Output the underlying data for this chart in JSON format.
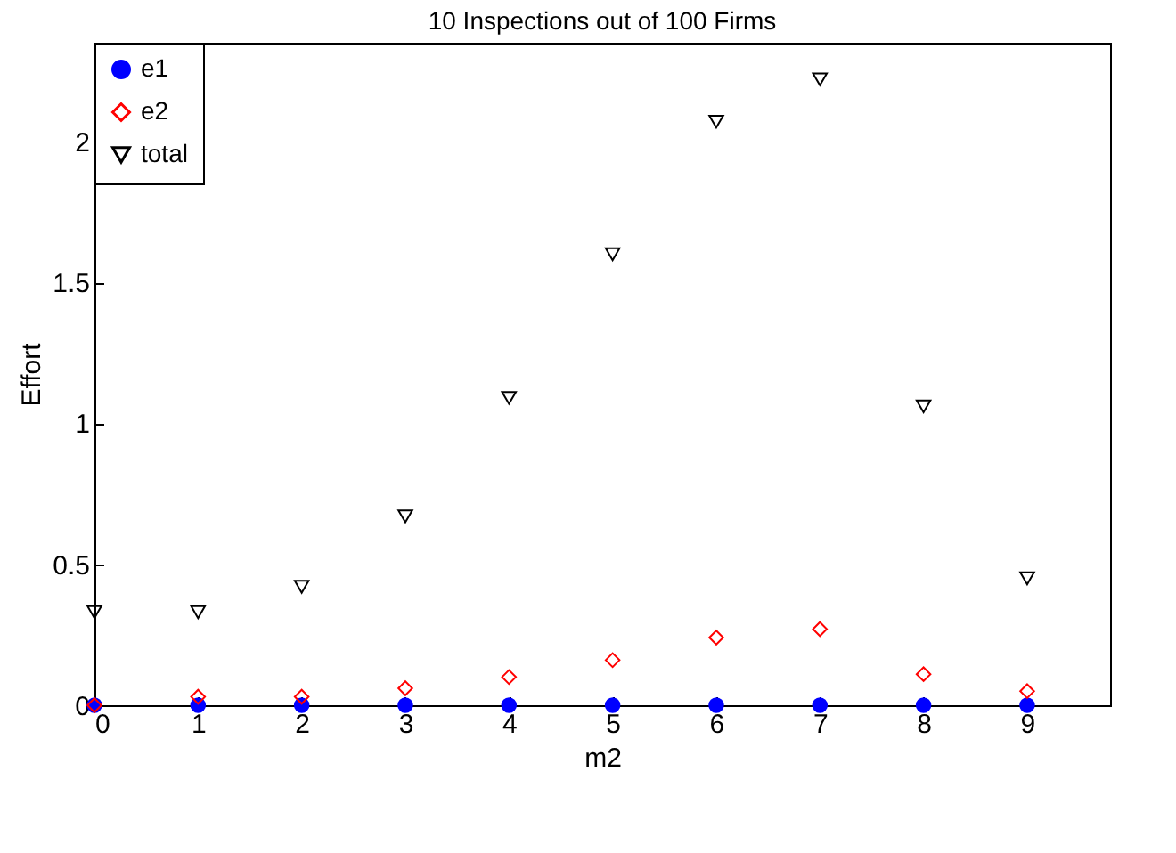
{
  "chart_data": {
    "type": "scatter",
    "title": "10 Inspections out of 100 Firms",
    "xlabel": "m2",
    "ylabel": "Effort",
    "x": [
      0,
      1,
      2,
      3,
      4,
      5,
      6,
      7,
      8,
      9
    ],
    "series": [
      {
        "name": "e1",
        "color": "#0000ff",
        "marker": "circle",
        "values": [
          0,
          0,
          0,
          0,
          0,
          0,
          0,
          0,
          0,
          0
        ]
      },
      {
        "name": "e2",
        "color": "#ff0000",
        "marker": "diamond",
        "values": [
          0,
          0.03,
          0.03,
          0.06,
          0.1,
          0.16,
          0.24,
          0.27,
          0.11,
          0.05
        ]
      },
      {
        "name": "total",
        "color": "#000000",
        "marker": "triangle",
        "values": [
          0.33,
          0.33,
          0.42,
          0.67,
          1.09,
          1.6,
          2.07,
          2.22,
          1.06,
          0.45
        ]
      }
    ],
    "xlim": [
      0,
      9.8
    ],
    "xticks": [
      0,
      1,
      2,
      3,
      4,
      5,
      6,
      7,
      8,
      9
    ],
    "ylim": [
      0,
      2.35
    ],
    "yticks": [
      0,
      0.5,
      1,
      1.5,
      2
    ],
    "legend": "top left",
    "grid": false
  }
}
